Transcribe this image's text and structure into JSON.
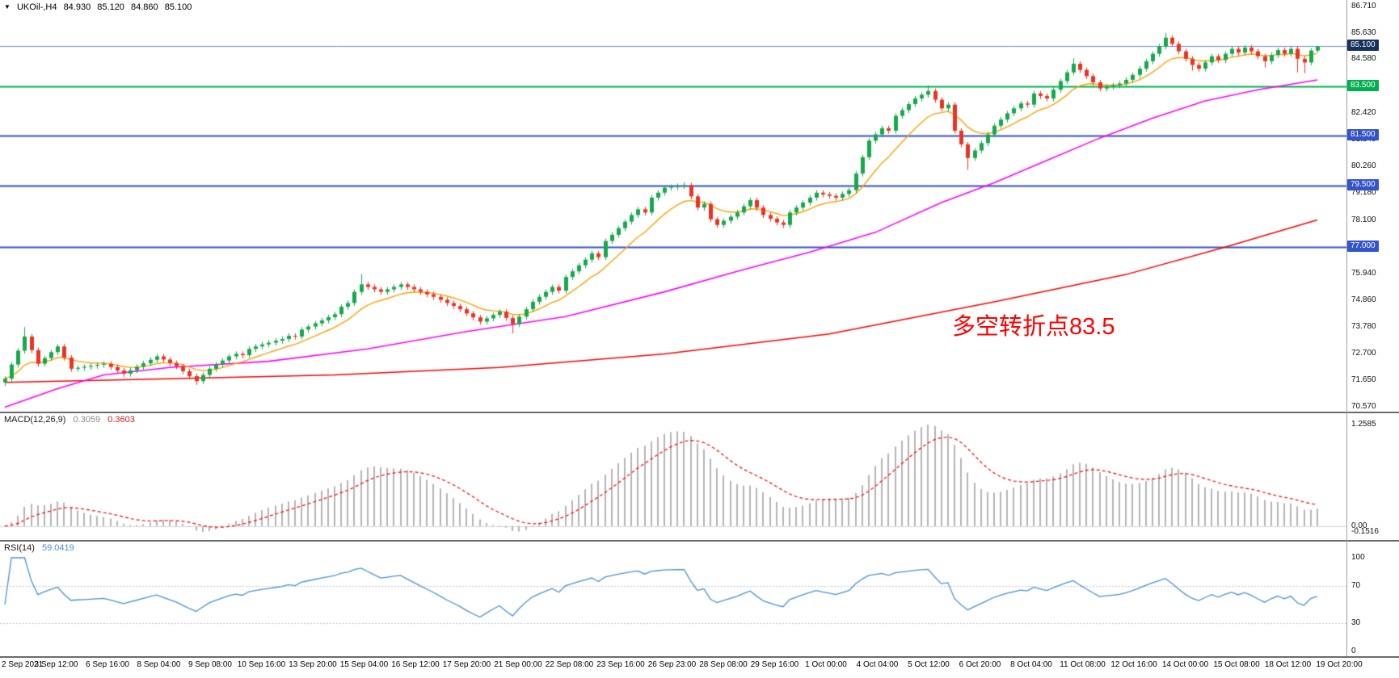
{
  "header": {
    "toggle_icon": "▼",
    "symbol": "UKOil-,H4",
    "open": "84.930",
    "high": "85.120",
    "low": "84.860",
    "close": "85.100"
  },
  "annotation": {
    "text": "多空转折点83.5",
    "color": "#ff0000"
  },
  "indicators": {
    "macd": {
      "name": "MACD(12,26,9)",
      "value_main": "0.3059",
      "value_signal": "0.3603",
      "axis_labels": {
        "max": "1.2585",
        "zero": "0.00",
        "min": "-0.1516"
      },
      "histogram_color": "#b4b4b4",
      "signal_color": "#ff0000",
      "params": {
        "fast": 12,
        "slow": 26,
        "signal": 9
      }
    },
    "rsi": {
      "name": "RSI(14)",
      "value": "59.0419",
      "period": 14,
      "axis_labels": [
        {
          "label": "100",
          "value": 100
        },
        {
          "label": "70",
          "value": 70
        },
        {
          "label": "30",
          "value": 30
        },
        {
          "label": "0",
          "value": 0
        }
      ],
      "levels": [
        70,
        30
      ],
      "line_color": "#4a90d9",
      "level_color": "#c0c0dc"
    }
  },
  "price_axis": {
    "ticks": [
      {
        "label": "86.710",
        "price": 86.71
      },
      {
        "label": "85.630",
        "price": 85.63
      },
      {
        "label": "84.580",
        "price": 84.58
      },
      {
        "label": "82.420",
        "price": 82.42
      },
      {
        "label": "81.340",
        "price": 81.34
      },
      {
        "label": "80.260",
        "price": 80.26
      },
      {
        "label": "79.180",
        "price": 79.18
      },
      {
        "label": "78.100",
        "price": 78.1
      },
      {
        "label": "75.940",
        "price": 75.94
      },
      {
        "label": "74.860",
        "price": 74.86
      },
      {
        "label": "73.780",
        "price": 73.78
      },
      {
        "label": "72.700",
        "price": 72.7
      },
      {
        "label": "71.650",
        "price": 71.65
      },
      {
        "label": "70.570",
        "price": 70.57
      }
    ],
    "boxes": [
      {
        "label": "85.100",
        "price": 85.1,
        "bg": "#16325c"
      },
      {
        "label": "83.500",
        "price": 83.5,
        "bg": "#00b050"
      },
      {
        "label": "81.500",
        "price": 81.5,
        "bg": "#3354cb"
      },
      {
        "label": "79.500",
        "price": 79.5,
        "bg": "#3354cb"
      },
      {
        "label": "77.000",
        "price": 77.0,
        "bg": "#3354cb"
      }
    ]
  },
  "chart_data": {
    "type": "candlestick",
    "title": "UKOil-,H4",
    "symbol": "UKOil-",
    "timeframe": "H4",
    "y_range": [
      70.37,
      86.97
    ],
    "current_price": 85.1,
    "colors": {
      "up": "#16a94c",
      "down": "#ec3323",
      "ma_fast": "#ffa000",
      "ma_mid": "#ff00ff",
      "ma_slow": "#fe0000"
    },
    "levels": [
      {
        "price": 85.1,
        "color": "#6f92cf",
        "width": 1,
        "label": "85.100"
      },
      {
        "price": 83.5,
        "color": "#00b050",
        "width": 2,
        "label": "83.500"
      },
      {
        "price": 81.5,
        "color": "#3354cb",
        "width": 2,
        "label": "81.500"
      },
      {
        "price": 79.5,
        "color": "#3354cb",
        "width": 2,
        "label": "79.500"
      },
      {
        "price": 77.0,
        "color": "#3354cb",
        "width": 2,
        "label": "77.000"
      }
    ],
    "time_labels": [
      "2 Sep 2021",
      "3 Sep 12:00",
      "6 Sep 16:00",
      "8 Sep 04:00",
      "9 Sep 08:00",
      "10 Sep 16:00",
      "13 Sep 20:00",
      "15 Sep 04:00",
      "16 Sep 12:00",
      "17 Sep 20:00",
      "21 Sep 00:00",
      "22 Sep 08:00",
      "23 Sep 16:00",
      "26 Sep 23:00",
      "28 Sep 08:00",
      "29 Sep 16:00",
      "1 Oct 00:00",
      "4 Oct 04:00",
      "5 Oct 12:00",
      "6 Oct 20:00",
      "8 Oct 04:00",
      "11 Oct 08:00",
      "12 Oct 16:00",
      "14 Oct 00:00",
      "15 Oct 08:00",
      "18 Oct 12:00",
      "19 Oct 20:00"
    ],
    "ma_fast_period": 10,
    "ma_mid_points": [
      [
        0,
        70.55
      ],
      [
        8,
        71.3
      ],
      [
        15,
        71.85
      ],
      [
        25,
        72.15
      ],
      [
        40,
        72.4
      ],
      [
        55,
        72.9
      ],
      [
        70,
        73.6
      ],
      [
        85,
        74.2
      ],
      [
        100,
        75.2
      ],
      [
        112,
        76.1
      ],
      [
        122,
        76.8
      ],
      [
        132,
        77.6
      ],
      [
        142,
        78.8
      ],
      [
        150,
        79.6
      ],
      [
        158,
        80.5
      ],
      [
        166,
        81.4
      ],
      [
        174,
        82.2
      ],
      [
        182,
        82.9
      ],
      [
        190,
        83.35
      ],
      [
        199,
        83.75
      ]
    ],
    "ma_slow_points": [
      [
        0,
        71.55
      ],
      [
        25,
        71.7
      ],
      [
        50,
        71.85
      ],
      [
        75,
        72.15
      ],
      [
        100,
        72.7
      ],
      [
        125,
        73.5
      ],
      [
        150,
        74.8
      ],
      [
        170,
        75.9
      ],
      [
        185,
        77.0
      ],
      [
        199,
        78.1
      ]
    ],
    "candles": {
      "first_open": 71.55,
      "wick_up": 0.1,
      "wick_down": 0.12,
      "closes": [
        71.7,
        72.27,
        72.83,
        73.4,
        72.85,
        72.3,
        72.53,
        72.77,
        73.0,
        72.55,
        72.1,
        72.14,
        72.18,
        72.22,
        72.26,
        72.3,
        72.17,
        72.03,
        71.9,
        72.04,
        72.18,
        72.32,
        72.46,
        72.6,
        72.47,
        72.33,
        72.2,
        72.0,
        71.8,
        71.6,
        71.85,
        72.1,
        72.27,
        72.43,
        72.6,
        72.7,
        72.65,
        72.9,
        73.0,
        73.08,
        73.15,
        73.23,
        73.3,
        73.43,
        73.4,
        73.68,
        73.8,
        73.93,
        74.05,
        74.18,
        74.3,
        74.6,
        74.75,
        75.2,
        75.5,
        75.4,
        75.3,
        75.2,
        75.3,
        75.4,
        75.5,
        75.4,
        75.3,
        75.2,
        75.1,
        75.0,
        74.88,
        74.75,
        74.63,
        74.5,
        74.33,
        74.17,
        74.0,
        74.13,
        74.27,
        74.4,
        74.15,
        73.9,
        74.2,
        74.5,
        74.8,
        75.0,
        75.2,
        75.4,
        75.25,
        75.8,
        76.03,
        76.27,
        76.5,
        76.75,
        76.6,
        77.25,
        77.5,
        77.77,
        78.03,
        78.3,
        78.53,
        78.4,
        79.0,
        79.2,
        79.4,
        79.43,
        79.47,
        79.5,
        79.05,
        78.6,
        78.75,
        78.13,
        77.9,
        78.07,
        78.23,
        78.4,
        78.65,
        78.9,
        78.6,
        78.3,
        78.15,
        78.0,
        77.9,
        78.4,
        78.6,
        78.8,
        79.0,
        79.2,
        79.13,
        79.07,
        79.0,
        79.15,
        79.3,
        79.97,
        80.63,
        81.3,
        81.55,
        81.8,
        81.7,
        82.3,
        82.53,
        82.77,
        83.0,
        83.15,
        83.3,
        82.95,
        82.6,
        82.75,
        81.7,
        81.15,
        80.6,
        80.9,
        81.2,
        81.55,
        81.9,
        82.15,
        82.4,
        82.6,
        82.8,
        82.75,
        83.2,
        83.1,
        83.0,
        83.35,
        83.7,
        84.05,
        84.4,
        84.15,
        83.9,
        83.65,
        83.4,
        83.47,
        83.53,
        83.6,
        83.75,
        83.95,
        84.2,
        84.5,
        84.8,
        85.1,
        85.45,
        85.2,
        84.9,
        84.6,
        84.35,
        84.2,
        84.45,
        84.7,
        84.55,
        84.8,
        85.0,
        84.85,
        85.05,
        84.9,
        84.7,
        84.5,
        84.75,
        84.95,
        84.8,
        85.0,
        84.6,
        84.45,
        84.93,
        85.1
      ],
      "wick_overrides": {
        "0": {
          "l": 71.4
        },
        "3": {
          "h": 73.78
        },
        "29": {
          "l": 71.45
        },
        "54": {
          "h": 75.92
        },
        "77": {
          "l": 73.52
        },
        "103": {
          "h": 79.62
        },
        "140": {
          "h": 83.52
        },
        "146": {
          "l": 80.12
        },
        "162": {
          "h": 84.62
        },
        "176": {
          "h": 85.64
        },
        "180": {
          "l": 84.12
        },
        "191": {
          "l": 84.25
        },
        "196": {
          "l": 84.05
        },
        "197": {
          "l": 84.02
        },
        "199": {
          "h": 85.12,
          "l": 84.86
        }
      }
    }
  }
}
